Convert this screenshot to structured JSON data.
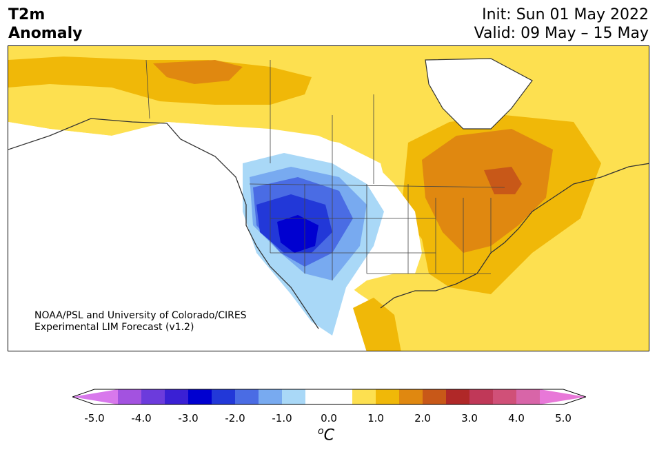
{
  "title": {
    "variable": "T2m",
    "subtitle": "Anomaly",
    "init": "Init: Sun 01 May 2022",
    "valid": "Valid: 09 May – 15 May"
  },
  "credit": {
    "line1": "NOAA/PSL and University of Colorado/CIRES",
    "line2": "Experimental LIM Forecast (v1.2)"
  },
  "colorbar": {
    "unit_base": "C",
    "unit_sup": "o",
    "ticks": [
      "-5.0",
      "-4.0",
      "-3.0",
      "-2.0",
      "-1.0",
      "0.0",
      "1.0",
      "2.0",
      "3.0",
      "4.0",
      "5.0"
    ],
    "colors": [
      "#d878ec",
      "#a352e0",
      "#6c3bdc",
      "#3a20d4",
      "#0000d0",
      "#2238d8",
      "#4a6ce4",
      "#78aaf0",
      "#a9d8f7",
      "#ffffff",
      "#ffffff",
      "#fde050",
      "#f0b808",
      "#e08810",
      "#c85818",
      "#b02828",
      "#c03858",
      "#d05078",
      "#d865a8",
      "#e878d8"
    ]
  }
}
